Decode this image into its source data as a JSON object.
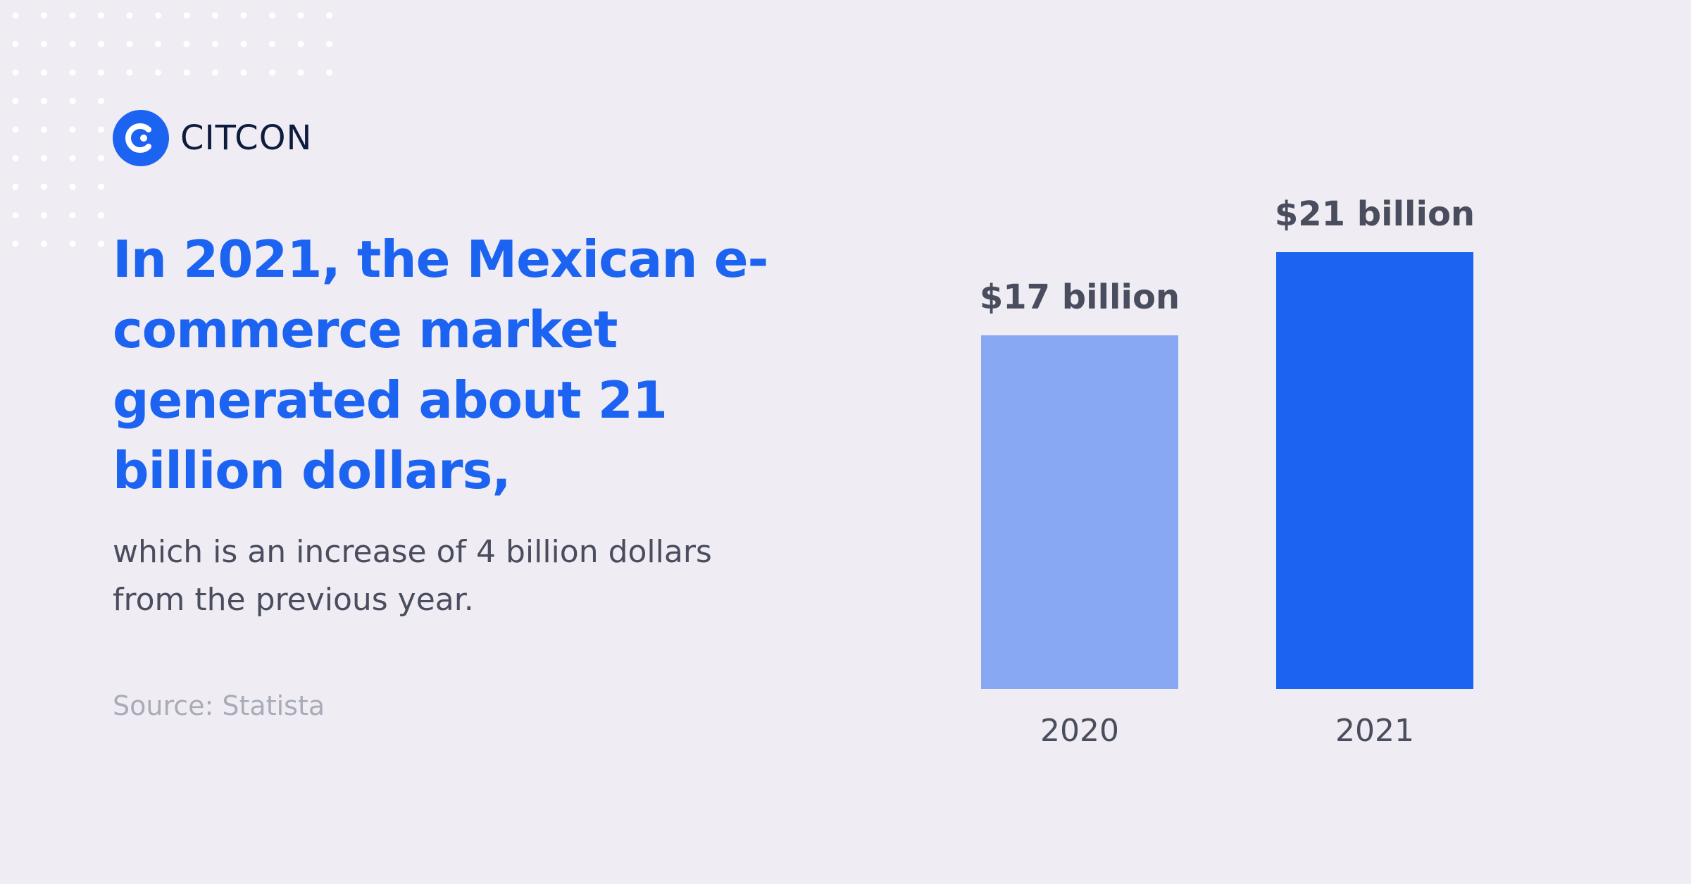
{
  "brand": {
    "name": "CITCON",
    "accent_color": "#1d63f2",
    "logo_icon": "citcon-logo-icon"
  },
  "headline": "In 2021, the Mexican e-commerce market generated about 21 billion dollars,",
  "subtext": "which is an increase of 4 billion dollars from the previous year.",
  "source": "Source: Statista",
  "chart_data": {
    "type": "bar",
    "categories": [
      "2020",
      "2021"
    ],
    "values": [
      17,
      21
    ],
    "value_labels": [
      "$17 billion",
      "$21 billion"
    ],
    "bar_colors": [
      "#89a8f4",
      "#1d63f2"
    ],
    "ylim": [
      0,
      21
    ],
    "grid": false,
    "title": "",
    "xlabel": "",
    "ylabel": ""
  }
}
